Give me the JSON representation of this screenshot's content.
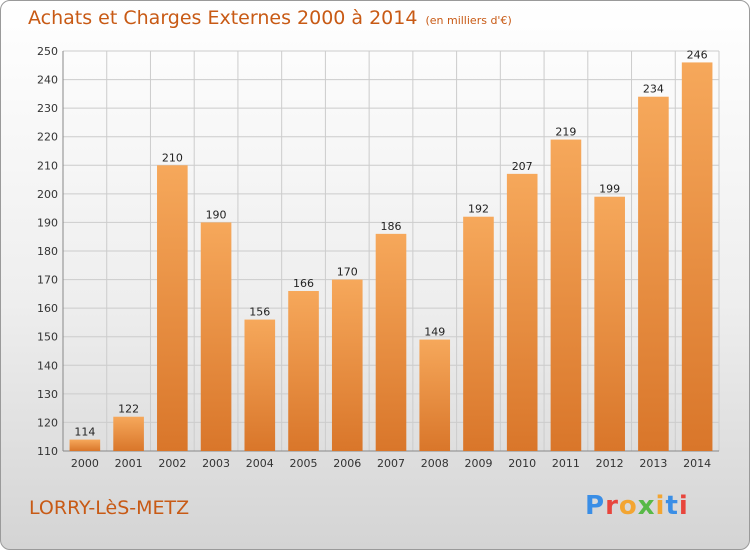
{
  "title": "Achats et Charges Externes 2000 à 2014",
  "unit": "(en milliers d'€)",
  "commune": "LORRY-LèS-METZ",
  "brand": {
    "text": "Proxiti",
    "letter_colors": [
      "#3a8ee6",
      "#e8453c",
      "#f3a531",
      "#58b947",
      "#f3a531",
      "#3a8ee6",
      "#e8453c"
    ]
  },
  "colors": {
    "bar_light": "#f6a85b",
    "bar_dark": "#d9762a",
    "title": "#c85a15",
    "grid": "#cccccc",
    "axis": "#888888"
  },
  "chart_data": {
    "type": "bar",
    "categories": [
      "2000",
      "2001",
      "2002",
      "2003",
      "2004",
      "2005",
      "2006",
      "2007",
      "2008",
      "2009",
      "2010",
      "2011",
      "2012",
      "2013",
      "2014"
    ],
    "values": [
      114,
      122,
      210,
      190,
      156,
      166,
      170,
      186,
      149,
      192,
      207,
      219,
      199,
      234,
      246
    ],
    "ylim": [
      110,
      250
    ],
    "yticks": [
      110,
      120,
      130,
      140,
      150,
      160,
      170,
      180,
      190,
      200,
      210,
      220,
      230,
      240,
      250
    ],
    "grid": true,
    "xlabel": "",
    "ylabel": ""
  }
}
